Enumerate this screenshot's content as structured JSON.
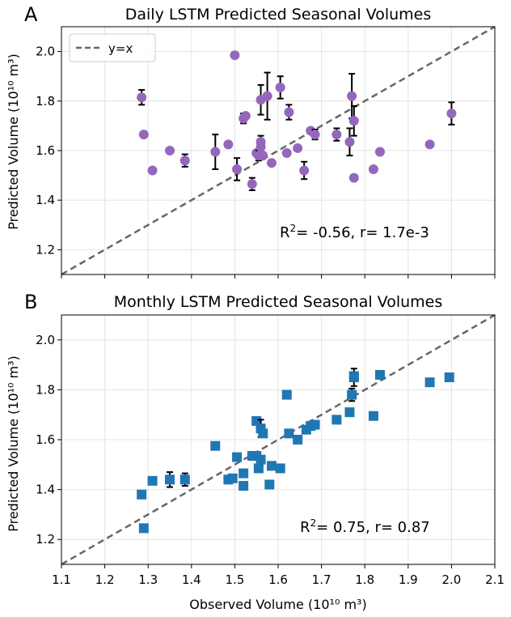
{
  "figure": {
    "xlabel": "Observed Volume (10¹⁰ m³)",
    "ylabel": "Predicted Volume (10¹⁰ m³)"
  },
  "chart_data": [
    {
      "type": "scatter",
      "panel": "A",
      "title": "Daily LSTM Predicted Seasonal Volumes",
      "ylabel": "Predicted Volume (10¹⁰ m³)",
      "xlim": [
        1.1,
        2.1
      ],
      "ylim": [
        1.1,
        2.1
      ],
      "yticks": [
        "1.2",
        "1.4",
        "1.6",
        "1.8",
        "2.0"
      ],
      "grid": true,
      "marker": "circle",
      "color": "#9467bd",
      "legend": {
        "label": "y=x",
        "position": "top-left"
      },
      "identity_line": true,
      "stat": {
        "r2_prefix": "R",
        "r2_sup": "2",
        "r2_rest": "= -0.56, r= 1.7e-3"
      },
      "points": [
        {
          "x": 1.285,
          "y": 1.815,
          "err": 0.03
        },
        {
          "x": 1.29,
          "y": 1.665,
          "err": 0
        },
        {
          "x": 1.31,
          "y": 1.52,
          "err": 0
        },
        {
          "x": 1.35,
          "y": 1.6,
          "err": 0
        },
        {
          "x": 1.385,
          "y": 1.56,
          "err": 0.025
        },
        {
          "x": 1.455,
          "y": 1.595,
          "err": 0.07
        },
        {
          "x": 1.485,
          "y": 1.625,
          "err": 0
        },
        {
          "x": 1.5,
          "y": 1.985,
          "err": 0
        },
        {
          "x": 1.505,
          "y": 1.525,
          "err": 0.045
        },
        {
          "x": 1.52,
          "y": 1.73,
          "err": 0.02
        },
        {
          "x": 1.525,
          "y": 1.74,
          "err": 0
        },
        {
          "x": 1.54,
          "y": 1.465,
          "err": 0.025
        },
        {
          "x": 1.55,
          "y": 1.59,
          "err": 0
        },
        {
          "x": 1.555,
          "y": 1.58,
          "err": 0.02
        },
        {
          "x": 1.56,
          "y": 1.805,
          "err": 0.06
        },
        {
          "x": 1.56,
          "y": 1.635,
          "err": 0.025
        },
        {
          "x": 1.56,
          "y": 1.615,
          "err": 0
        },
        {
          "x": 1.565,
          "y": 1.58,
          "err": 0
        },
        {
          "x": 1.575,
          "y": 1.82,
          "err": 0.095
        },
        {
          "x": 1.585,
          "y": 1.55,
          "err": 0
        },
        {
          "x": 1.605,
          "y": 1.855,
          "err": 0.045
        },
        {
          "x": 1.62,
          "y": 1.59,
          "err": 0
        },
        {
          "x": 1.625,
          "y": 1.755,
          "err": 0.03
        },
        {
          "x": 1.645,
          "y": 1.61,
          "err": 0
        },
        {
          "x": 1.66,
          "y": 1.52,
          "err": 0.035
        },
        {
          "x": 1.675,
          "y": 1.68,
          "err": 0
        },
        {
          "x": 1.685,
          "y": 1.665,
          "err": 0.02
        },
        {
          "x": 1.735,
          "y": 1.665,
          "err": 0.025
        },
        {
          "x": 1.765,
          "y": 1.635,
          "err": 0.055
        },
        {
          "x": 1.77,
          "y": 1.82,
          "err": 0.09
        },
        {
          "x": 1.775,
          "y": 1.72,
          "err": 0.06
        },
        {
          "x": 1.775,
          "y": 1.49,
          "err": 0
        },
        {
          "x": 1.82,
          "y": 1.525,
          "err": 0
        },
        {
          "x": 1.835,
          "y": 1.595,
          "err": 0
        },
        {
          "x": 1.95,
          "y": 1.625,
          "err": 0
        },
        {
          "x": 2.0,
          "y": 1.75,
          "err": 0.045
        }
      ]
    },
    {
      "type": "scatter",
      "panel": "B",
      "title": "Monthly LSTM Predicted Seasonal Volumes",
      "ylabel": "Predicted Volume (10¹⁰ m³)",
      "xlabel": "Observed Volume (10¹⁰ m³)",
      "xlim": [
        1.1,
        2.1
      ],
      "ylim": [
        1.1,
        2.1
      ],
      "xticks": [
        "1.1",
        "1.2",
        "1.3",
        "1.4",
        "1.5",
        "1.6",
        "1.7",
        "1.8",
        "1.9",
        "2.0",
        "2.1"
      ],
      "yticks": [
        "1.2",
        "1.4",
        "1.6",
        "1.8",
        "2.0"
      ],
      "grid": true,
      "marker": "square",
      "color": "#1f77b4",
      "identity_line": true,
      "stat": {
        "r2_prefix": "R",
        "r2_sup": "2",
        "r2_rest": "= 0.75, r= 0.87"
      },
      "points": [
        {
          "x": 1.285,
          "y": 1.38,
          "err": 0
        },
        {
          "x": 1.29,
          "y": 1.245,
          "err": 0
        },
        {
          "x": 1.31,
          "y": 1.435,
          "err": 0
        },
        {
          "x": 1.35,
          "y": 1.44,
          "err": 0.03
        },
        {
          "x": 1.385,
          "y": 1.44,
          "err": 0.025
        },
        {
          "x": 1.455,
          "y": 1.575,
          "err": 0
        },
        {
          "x": 1.485,
          "y": 1.44,
          "err": 0
        },
        {
          "x": 1.495,
          "y": 1.445,
          "err": 0
        },
        {
          "x": 1.505,
          "y": 1.53,
          "err": 0
        },
        {
          "x": 1.52,
          "y": 1.415,
          "err": 0
        },
        {
          "x": 1.52,
          "y": 1.465,
          "err": 0
        },
        {
          "x": 1.54,
          "y": 1.535,
          "err": 0
        },
        {
          "x": 1.55,
          "y": 1.675,
          "err": 0
        },
        {
          "x": 1.55,
          "y": 1.535,
          "err": 0
        },
        {
          "x": 1.555,
          "y": 1.485,
          "err": 0
        },
        {
          "x": 1.56,
          "y": 1.645,
          "err": 0.035
        },
        {
          "x": 1.56,
          "y": 1.52,
          "err": 0
        },
        {
          "x": 1.565,
          "y": 1.625,
          "err": 0
        },
        {
          "x": 1.58,
          "y": 1.42,
          "err": 0
        },
        {
          "x": 1.585,
          "y": 1.495,
          "err": 0
        },
        {
          "x": 1.605,
          "y": 1.485,
          "err": 0
        },
        {
          "x": 1.62,
          "y": 1.78,
          "err": 0
        },
        {
          "x": 1.625,
          "y": 1.625,
          "err": 0
        },
        {
          "x": 1.645,
          "y": 1.6,
          "err": 0
        },
        {
          "x": 1.665,
          "y": 1.64,
          "err": 0
        },
        {
          "x": 1.675,
          "y": 1.655,
          "err": 0
        },
        {
          "x": 1.685,
          "y": 1.66,
          "err": 0
        },
        {
          "x": 1.735,
          "y": 1.68,
          "err": 0
        },
        {
          "x": 1.765,
          "y": 1.71,
          "err": 0
        },
        {
          "x": 1.77,
          "y": 1.78,
          "err": 0.025
        },
        {
          "x": 1.775,
          "y": 1.85,
          "err": 0.035
        },
        {
          "x": 1.775,
          "y": 1.855,
          "err": 0
        },
        {
          "x": 1.82,
          "y": 1.695,
          "err": 0
        },
        {
          "x": 1.835,
          "y": 1.86,
          "err": 0
        },
        {
          "x": 1.95,
          "y": 1.83,
          "err": 0
        },
        {
          "x": 1.995,
          "y": 1.85,
          "err": 0
        }
      ]
    }
  ]
}
